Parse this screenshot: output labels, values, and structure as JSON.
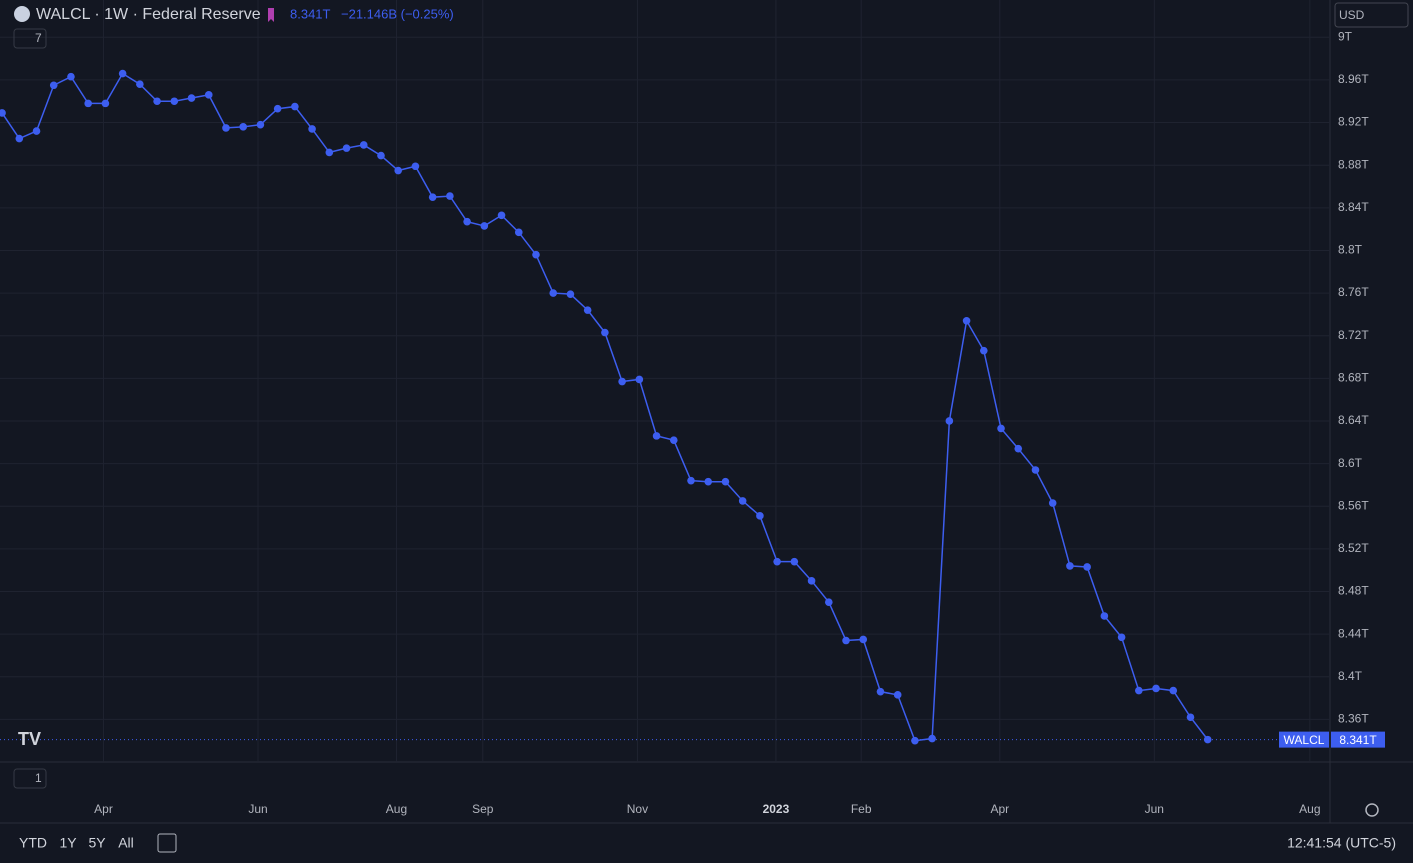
{
  "chart_data": {
    "type": "line",
    "title": "WALCL · 1W · Federal Reserve",
    "x": [
      0,
      1,
      2,
      3,
      4,
      5,
      6,
      7,
      8,
      9,
      10,
      11,
      12,
      13,
      14,
      15,
      16,
      17,
      18,
      19,
      20,
      21,
      22,
      23,
      24,
      25,
      26,
      27,
      28,
      29,
      30,
      31,
      32,
      33,
      34,
      35,
      36,
      37,
      38,
      39,
      40,
      41,
      42,
      43,
      44,
      45,
      46,
      47,
      48,
      49,
      50,
      51,
      52,
      53,
      54,
      55,
      56,
      57,
      58,
      59,
      60,
      61,
      62,
      63,
      64,
      65,
      66,
      67,
      68,
      69,
      70
    ],
    "series": [
      {
        "name": "WALCL",
        "color": "#3d5ef0",
        "values": [
          8.929,
          8.905,
          8.912,
          8.955,
          8.963,
          8.938,
          8.938,
          8.966,
          8.956,
          8.94,
          8.94,
          8.943,
          8.946,
          8.915,
          8.916,
          8.918,
          8.933,
          8.935,
          8.914,
          8.892,
          8.896,
          8.899,
          8.889,
          8.875,
          8.879,
          8.85,
          8.851,
          8.827,
          8.823,
          8.833,
          8.817,
          8.796,
          8.76,
          8.759,
          8.744,
          8.723,
          8.677,
          8.679,
          8.626,
          8.622,
          8.584,
          8.583,
          8.583,
          8.565,
          8.551,
          8.508,
          8.508,
          8.49,
          8.47,
          8.434,
          8.435,
          8.386,
          8.383,
          8.34,
          8.342,
          8.64,
          8.734,
          8.706,
          8.633,
          8.614,
          8.594,
          8.563,
          8.504,
          8.503,
          8.457,
          8.437,
          8.387,
          8.389,
          8.387,
          8.362,
          8.341
        ]
      }
    ],
    "xlim": [
      -0.12,
      77.1
    ],
    "xticks": [
      {
        "value": 5.89,
        "label": "Apr"
      },
      {
        "value": 14.86,
        "label": "Jun"
      },
      {
        "value": 22.9,
        "label": "Aug"
      },
      {
        "value": 27.91,
        "label": "Sep"
      },
      {
        "value": 36.89,
        "label": "Nov"
      },
      {
        "value": 44.93,
        "label": "2023"
      },
      {
        "value": 49.88,
        "label": "Feb"
      },
      {
        "value": 57.93,
        "label": "Apr"
      },
      {
        "value": 66.9,
        "label": "Jun"
      },
      {
        "value": 75.93,
        "label": "Aug"
      }
    ],
    "ylim": [
      8.32,
      9.035
    ],
    "yticks": [
      {
        "value": 9,
        "label": "9T"
      },
      {
        "value": 8.96,
        "label": "8.96T"
      },
      {
        "value": 8.92,
        "label": "8.92T"
      },
      {
        "value": 8.88,
        "label": "8.88T"
      },
      {
        "value": 8.84,
        "label": "8.84T"
      },
      {
        "value": 8.8,
        "label": "8.8T"
      },
      {
        "value": 8.76,
        "label": "8.76T"
      },
      {
        "value": 8.72,
        "label": "8.72T"
      },
      {
        "value": 8.68,
        "label": "8.68T"
      },
      {
        "value": 8.64,
        "label": "8.64T"
      },
      {
        "value": 8.6,
        "label": "8.6T"
      },
      {
        "value": 8.56,
        "label": "8.56T"
      },
      {
        "value": 8.52,
        "label": "8.52T"
      },
      {
        "value": 8.48,
        "label": "8.48T"
      },
      {
        "value": 8.44,
        "label": "8.44T"
      },
      {
        "value": 8.4,
        "label": "8.4T"
      },
      {
        "value": 8.36,
        "label": "8.36T"
      }
    ],
    "grid": true,
    "last_value": {
      "value": 8.341,
      "label": "8.341T"
    },
    "change": "−21.146B (−0.25%)"
  },
  "ui": {
    "currency": "USD",
    "collapse_top": "7",
    "collapse_bottom": "1",
    "ranges": [
      "YTD",
      "1Y",
      "5Y",
      "All"
    ],
    "clock": "12:41:54 (UTC-5)"
  }
}
